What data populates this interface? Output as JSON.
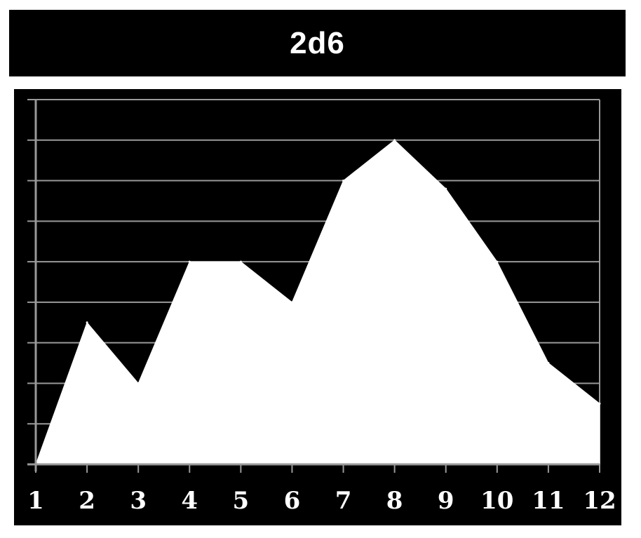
{
  "chart_data": {
    "type": "area",
    "title": "2d6",
    "xlabel": "",
    "ylabel": "",
    "x": [
      1,
      2,
      3,
      4,
      5,
      6,
      7,
      8,
      9,
      10,
      11,
      12
    ],
    "categories": [
      "1",
      "2",
      "3",
      "4",
      "5",
      "6",
      "7",
      "8",
      "9",
      "10",
      "11",
      "12"
    ],
    "series": [
      {
        "values": [
          0,
          3.5,
          2,
          5,
          5,
          4,
          7,
          8,
          6.8,
          5,
          2.5,
          1.5
        ]
      }
    ],
    "ylim": [
      0,
      9
    ],
    "y_gridlines": 9,
    "grid": true,
    "legend": "none",
    "colors": {
      "background": "#000000",
      "fill": "#ffffff",
      "grid": "#999999",
      "text": "#ffffff"
    }
  }
}
